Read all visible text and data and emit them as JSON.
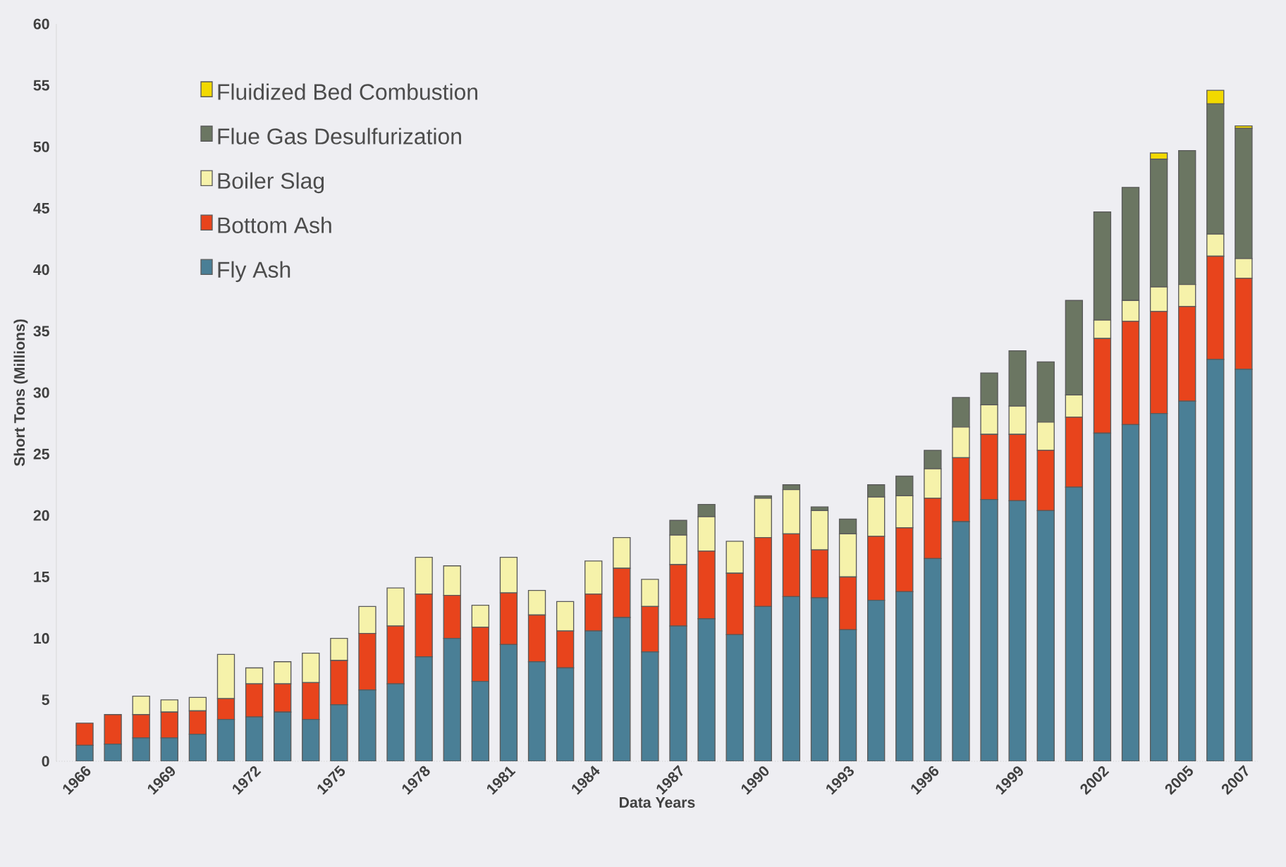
{
  "chart_data": {
    "type": "bar",
    "stacked": true,
    "xlabel": "Data Years",
    "ylabel": "Short Tons (Millions)",
    "categories": [
      "1966",
      null,
      null,
      "1969",
      null,
      null,
      "1972",
      null,
      null,
      "1975",
      null,
      null,
      "1978",
      null,
      null,
      "1981",
      null,
      null,
      "1984",
      null,
      null,
      "1987",
      null,
      null,
      "1990",
      null,
      null,
      "1993",
      null,
      null,
      "1996",
      null,
      null,
      "1999",
      null,
      null,
      "2002",
      null,
      null,
      "2005",
      null,
      "2007"
    ],
    "ylim": [
      0,
      60
    ],
    "yticks": [
      0,
      5,
      10,
      15,
      20,
      25,
      30,
      35,
      40,
      45,
      50,
      55,
      60
    ],
    "legend": "top left",
    "grid": false,
    "series": [
      {
        "name": "Fly Ash",
        "color": "#4a7f96",
        "values": [
          1.3,
          1.4,
          1.9,
          1.9,
          2.2,
          3.4,
          3.6,
          4.0,
          3.4,
          4.6,
          5.8,
          6.3,
          8.5,
          10.0,
          6.5,
          9.5,
          8.1,
          7.6,
          10.6,
          11.7,
          8.9,
          11.0,
          11.6,
          10.3,
          12.6,
          13.4,
          13.3,
          10.7,
          13.1,
          13.8,
          16.5,
          19.5,
          21.3,
          21.2,
          20.4,
          22.3,
          26.7,
          27.4,
          28.3,
          29.3,
          32.7,
          31.9
        ]
      },
      {
        "name": "Bottom Ash",
        "color": "#e8441c",
        "values": [
          1.8,
          2.4,
          1.9,
          2.1,
          1.9,
          1.7,
          2.7,
          2.3,
          3.0,
          3.6,
          4.6,
          4.7,
          5.1,
          3.5,
          4.4,
          4.2,
          3.8,
          3.0,
          3.0,
          4.0,
          3.7,
          5.0,
          5.5,
          5.0,
          5.6,
          5.1,
          3.9,
          4.3,
          5.2,
          5.2,
          4.9,
          5.2,
          5.3,
          5.4,
          4.9,
          5.7,
          7.7,
          8.4,
          8.3,
          7.7,
          8.4,
          7.4
        ]
      },
      {
        "name": "Boiler Slag",
        "color": "#f6f2aa",
        "values": [
          null,
          null,
          1.5,
          1.0,
          1.1,
          3.6,
          1.3,
          1.8,
          2.4,
          1.8,
          2.2,
          3.1,
          3.0,
          2.4,
          1.8,
          2.9,
          2.0,
          2.4,
          2.7,
          2.5,
          2.2,
          2.4,
          2.8,
          2.6,
          3.2,
          3.6,
          3.2,
          3.5,
          3.2,
          2.6,
          2.4,
          2.5,
          2.4,
          2.3,
          2.3,
          1.8,
          1.5,
          1.7,
          2.0,
          1.8,
          1.8,
          1.6
        ]
      },
      {
        "name": "Flue Gas Desulfurization",
        "color": "#6b7662",
        "values": [
          null,
          null,
          null,
          null,
          null,
          null,
          null,
          null,
          null,
          null,
          null,
          null,
          null,
          null,
          null,
          null,
          null,
          null,
          null,
          null,
          null,
          1.2,
          1.0,
          null,
          0.2,
          0.4,
          0.3,
          1.2,
          1.0,
          1.6,
          1.5,
          2.4,
          2.6,
          4.5,
          4.9,
          7.7,
          8.8,
          9.2,
          10.4,
          10.9,
          10.6,
          10.6
        ]
      },
      {
        "name": "Fluidized Bed Combustion",
        "color": "#f2d900",
        "values": [
          null,
          null,
          null,
          null,
          null,
          null,
          null,
          null,
          null,
          null,
          null,
          null,
          null,
          null,
          null,
          null,
          null,
          null,
          null,
          null,
          null,
          null,
          null,
          null,
          null,
          null,
          null,
          null,
          null,
          null,
          null,
          null,
          null,
          null,
          null,
          null,
          null,
          null,
          0.5,
          null,
          1.1,
          0.2
        ]
      }
    ]
  }
}
